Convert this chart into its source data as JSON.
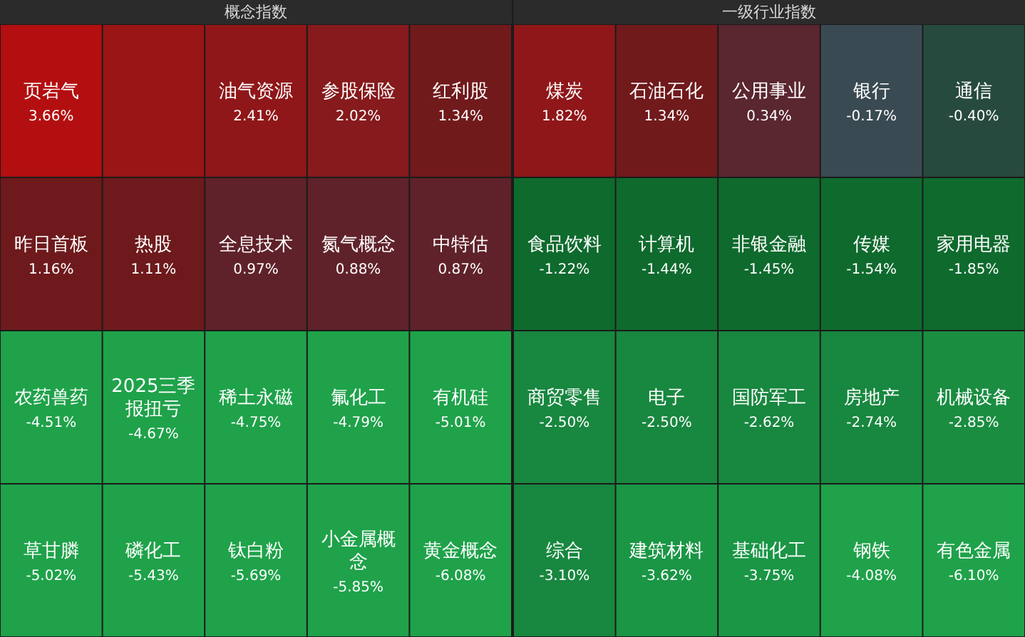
{
  "chart_data": [
    {
      "type": "other",
      "title": "概念指数",
      "categories": [
        "页岩气",
        null,
        "油气资源",
        "参股保险",
        "红利股",
        "昨日首板",
        "热股",
        "全息技术",
        "氮气概念",
        "中特估",
        "农药兽药",
        "2025三季报扭亏",
        "稀土永磁",
        "氟化工",
        "有机硅",
        "草甘膦",
        "磷化工",
        "钛白粉",
        "小金属概念",
        "黄金概念"
      ],
      "values": [
        3.66,
        null,
        2.41,
        2.02,
        1.34,
        1.16,
        1.11,
        0.97,
        0.88,
        0.87,
        -4.51,
        -4.67,
        -4.75,
        -4.79,
        -5.01,
        -5.02,
        -5.43,
        -5.69,
        -5.85,
        -6.08
      ],
      "value_labels": [
        "3.66%",
        null,
        "2.41%",
        "2.02%",
        "1.34%",
        "1.16%",
        "1.11%",
        "0.97%",
        "0.88%",
        "0.87%",
        "-4.51%",
        "-4.67%",
        "-4.75%",
        "-4.79%",
        "-5.01%",
        "-5.02%",
        "-5.43%",
        "-5.69%",
        "-5.85%",
        "-6.08%"
      ],
      "colors": [
        "#b30f10",
        "#9a1515",
        "#8f1719",
        "#861a1c",
        "#701a1c",
        "#6e1a1c",
        "#6e1a1c",
        "#60222a",
        "#60222a",
        "#60222a",
        "#1fa24a",
        "#1fa24a",
        "#1fa24a",
        "#1fa24a",
        "#1fa24a",
        "#1fa24a",
        "#1fa24a",
        "#1fa24a",
        "#1fa24a",
        "#1fa24a"
      ]
    },
    {
      "type": "other",
      "title": "一级行业指数",
      "categories": [
        "煤炭",
        "石油石化",
        "公用事业",
        "银行",
        "通信",
        "食品饮料",
        "计算机",
        "非银金融",
        "传媒",
        "家用电器",
        "商贸零售",
        "电子",
        "国防军工",
        "房地产",
        "机械设备",
        "综合",
        "建筑材料",
        "基础化工",
        "钢铁",
        "有色金属"
      ],
      "values": [
        1.82,
        1.34,
        0.34,
        -0.17,
        -0.4,
        -1.22,
        -1.44,
        -1.45,
        -1.54,
        -1.85,
        -2.5,
        -2.5,
        -2.62,
        -2.74,
        -2.85,
        -3.1,
        -3.62,
        -3.75,
        -4.08,
        -6.1
      ],
      "value_labels": [
        "1.82%",
        "1.34%",
        "0.34%",
        "-0.17%",
        "-0.40%",
        "-1.22%",
        "-1.44%",
        "-1.45%",
        "-1.54%",
        "-1.85%",
        "-2.50%",
        "-2.50%",
        "-2.62%",
        "-2.74%",
        "-2.85%",
        "-3.10%",
        "-3.62%",
        "-3.75%",
        "-4.08%",
        "-6.10%"
      ],
      "colors": [
        "#8f1719",
        "#701a1c",
        "#5a2630",
        "#3a4a52",
        "#274a3e",
        "#0f6a2e",
        "#0f6a2e",
        "#0f6a2e",
        "#0f6a2e",
        "#0f6a2e",
        "#18873f",
        "#18873f",
        "#18873f",
        "#18873f",
        "#1a8d41",
        "#18873f",
        "#1a9645",
        "#1a9645",
        "#1fa24a",
        "#1fa24a"
      ]
    }
  ]
}
